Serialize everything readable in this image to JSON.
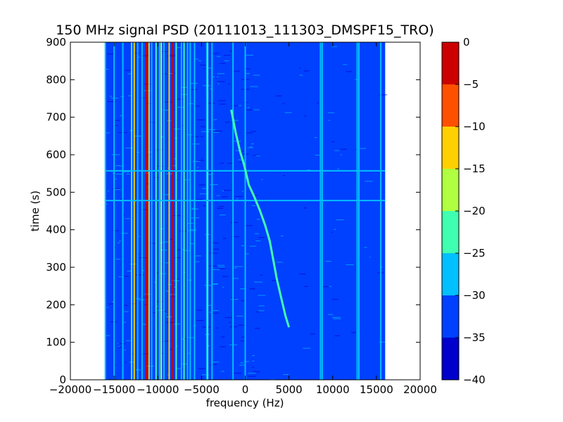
{
  "chart_data": {
    "type": "heatmap",
    "title": "150 MHz signal PSD (20111013_111303_DMSPF15_TRO)",
    "xlabel": "frequency (Hz)",
    "ylabel": "time (s)",
    "xlim": [
      -20000,
      20000
    ],
    "ylim": [
      0,
      900
    ],
    "x_ticks": [
      -20000,
      -15000,
      -10000,
      -5000,
      0,
      5000,
      10000,
      15000,
      20000
    ],
    "x_tick_labels": [
      "−20000",
      "−15000",
      "−10000",
      "−5000",
      "0",
      "5000",
      "10000",
      "15000",
      "20000"
    ],
    "y_ticks": [
      0,
      100,
      200,
      300,
      400,
      500,
      600,
      700,
      800,
      900
    ],
    "y_tick_labels": [
      "0",
      "100",
      "200",
      "300",
      "400",
      "500",
      "600",
      "700",
      "800",
      "900"
    ],
    "data_extent_x": [
      -16000,
      16000
    ],
    "background_level": -32,
    "colorbar": {
      "min": -40,
      "max": 0,
      "levels": [
        {
          "from": -40,
          "to": -35,
          "color": "#0000cc"
        },
        {
          "from": -35,
          "to": -30,
          "color": "#0040ff"
        },
        {
          "from": -30,
          "to": -25,
          "color": "#00c0ff"
        },
        {
          "from": -25,
          "to": -20,
          "color": "#40ffb0"
        },
        {
          "from": -20,
          "to": -15,
          "color": "#b0ff40"
        },
        {
          "from": -15,
          "to": -10,
          "color": "#ffd000"
        },
        {
          "from": -10,
          "to": -5,
          "color": "#ff5000"
        },
        {
          "from": -5,
          "to": 0,
          "color": "#cc0000"
        }
      ],
      "ticks": [
        0,
        -5,
        -10,
        -15,
        -20,
        -25,
        -30,
        -35,
        -40
      ],
      "tick_labels": [
        "0",
        "−5",
        "−10",
        "−15",
        "−20",
        "−25",
        "−30",
        "−35",
        "−40"
      ]
    },
    "vertical_lines": [
      {
        "f": -16000,
        "level": -27
      },
      {
        "f": -15000,
        "level": -26
      },
      {
        "f": -14000,
        "level": -27
      },
      {
        "f": -13000,
        "level": -22
      },
      {
        "f": -12700,
        "level": -12
      },
      {
        "f": -12300,
        "level": -27
      },
      {
        "f": -11800,
        "level": -27
      },
      {
        "f": -11000,
        "level": -12
      },
      {
        "f": -10700,
        "level": -27
      },
      {
        "f": -10200,
        "level": -22
      },
      {
        "f": -9800,
        "level": -27
      },
      {
        "f": -9600,
        "level": -17
      },
      {
        "f": -9300,
        "level": -27
      },
      {
        "f": -8700,
        "level": -12
      },
      {
        "f": -8300,
        "level": -2
      },
      {
        "f": -7900,
        "level": -22
      },
      {
        "f": -7300,
        "level": -27
      },
      {
        "f": -7000,
        "level": -22
      },
      {
        "f": -6600,
        "level": -27
      },
      {
        "f": -6300,
        "level": -27
      },
      {
        "f": -5800,
        "level": -27
      },
      {
        "f": -4400,
        "level": -27
      },
      {
        "f": -4300,
        "level": -22
      },
      {
        "f": -3800,
        "level": -27
      },
      {
        "f": -1400,
        "level": -27
      },
      {
        "f": 0,
        "level": -27
      },
      {
        "f": 8600,
        "level": -27
      },
      {
        "f": 8800,
        "level": -27
      },
      {
        "f": 12800,
        "level": -27
      },
      {
        "f": 13000,
        "level": -27
      },
      {
        "f": 15500,
        "level": -27
      }
    ],
    "red_line": {
      "f": -11300,
      "level": -2
    },
    "horizontal_lines": [
      {
        "t": 557,
        "level": -27
      },
      {
        "t": 478,
        "level": -27
      }
    ],
    "curves": [
      {
        "name": "",
        "level": -25,
        "points": [
          [
            -1600,
            720
          ],
          [
            -1100,
            660
          ],
          [
            -600,
            610
          ],
          [
            -100,
            570
          ],
          [
            400,
            520
          ],
          [
            1000,
            490
          ],
          [
            1700,
            450
          ],
          [
            2300,
            410
          ],
          [
            2800,
            370
          ],
          [
            3200,
            320
          ],
          [
            3600,
            270
          ],
          [
            4100,
            220
          ],
          [
            4600,
            170
          ],
          [
            5000,
            140
          ]
        ]
      }
    ]
  }
}
